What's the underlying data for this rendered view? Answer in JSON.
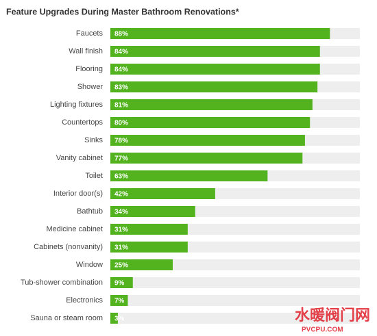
{
  "chart_data": {
    "type": "barh",
    "title": "Feature Upgrades During Master Bathroom Renovations*",
    "categories": [
      "Faucets",
      "Wall finish",
      "Flooring",
      "Shower",
      "Lighting fixtures",
      "Countertops",
      "Sinks",
      "Vanity cabinet",
      "Toilet",
      "Interior door(s)",
      "Bathtub",
      "Medicine cabinet",
      "Cabinets (nonvanity)",
      "Window",
      "Tub-shower combination",
      "Electronics",
      "Sauna or steam room"
    ],
    "values": [
      88,
      84,
      84,
      83,
      81,
      80,
      78,
      77,
      63,
      42,
      34,
      31,
      31,
      25,
      9,
      7,
      3
    ],
    "value_labels": [
      "88%",
      "84%",
      "84%",
      "83%",
      "81%",
      "80%",
      "78%",
      "77%",
      "63%",
      "42%",
      "34%",
      "31%",
      "31%",
      "25%",
      "9%",
      "7%",
      "3%"
    ],
    "color": "#52b31e",
    "track_color": "#eeeeee",
    "xlim": [
      0,
      100
    ]
  },
  "watermark": {
    "text": "水暖阀门网",
    "url": "PVCPU.COM"
  }
}
